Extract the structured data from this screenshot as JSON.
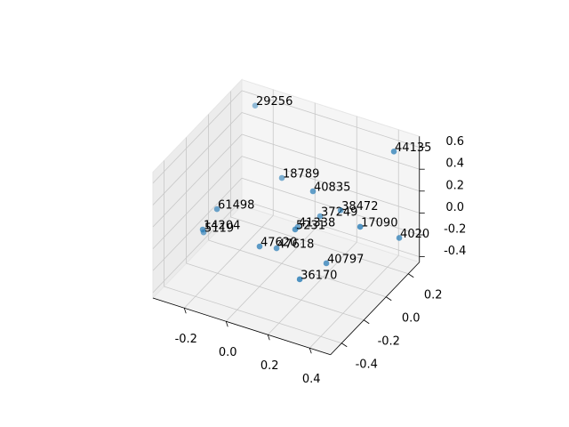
{
  "chart_data": {
    "type": "scatter3d",
    "color": "#1f77b4",
    "labels": [
      "29256",
      "44135",
      "18789",
      "40835",
      "61498",
      "37249",
      "38472",
      "17090",
      "41338",
      "5231",
      "14204",
      "5119",
      "4020",
      "47620",
      "47618",
      "40797",
      "36170"
    ],
    "x": [
      -0.233,
      0.431,
      -0.052,
      0.15,
      -0.203,
      0.131,
      0.176,
      0.376,
      0.024,
      0.118,
      -0.218,
      -0.267,
      0.43,
      0.001,
      0.029,
      0.214,
      0.193
    ],
    "y": [
      0.2,
      0.2,
      0.1,
      0,
      -0.2,
      0.1,
      0.2,
      0,
      0.1,
      -0.1,
      -0.3,
      -0.2,
      0.25,
      -0.2,
      -0.1,
      0,
      -0.2
    ],
    "z": [
      0.64,
      0.625,
      0.195,
      0.302,
      0.135,
      -0.043,
      -0.068,
      0.115,
      -0.206,
      0.039,
      0.045,
      -0.116,
      -0.218,
      -0.082,
      -0.187,
      -0.317,
      -0.265
    ],
    "xlim": [
      -0.35,
      0.5
    ],
    "ylim": [
      -0.5,
      0.3
    ],
    "zlim": [
      -0.45,
      0.7
    ],
    "xticks": [
      -0.2,
      {
        "value": 0,
        "label": "0.0"
      },
      0.2,
      0.4
    ],
    "yticks": [
      -0.4,
      -0.2,
      {
        "value": 0,
        "label": "0.0"
      },
      0.2
    ],
    "zticks": [
      -0.4,
      -0.2,
      {
        "value": 0,
        "label": "0.0"
      },
      0.2,
      0.4,
      0.6
    ],
    "grid": true
  }
}
